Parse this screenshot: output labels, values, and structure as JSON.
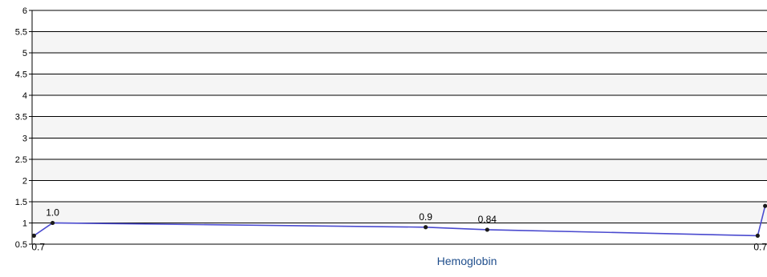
{
  "chart_data": {
    "type": "line",
    "title": "",
    "xlabel": "Hemoglobin",
    "ylabel": "",
    "ylim": [
      0.5,
      6
    ],
    "y_ticks": [
      0.5,
      1,
      1.5,
      2,
      2.5,
      3,
      3.5,
      4,
      4.5,
      5,
      5.5,
      6
    ],
    "y_tick_labels": [
      "0.5",
      "1",
      "1.5",
      "2",
      "2.5",
      "3",
      "3.5",
      "4",
      "4.5",
      "5",
      "5.5",
      "6"
    ],
    "grid": true,
    "series": [
      {
        "color": "#4a4acf",
        "points": [
          {
            "index": 0,
            "value": 0.7,
            "label": "0.7"
          },
          {
            "index": 1,
            "value": 1.0,
            "label": "1.0"
          },
          {
            "index": 21,
            "value": 0.9,
            "label": "0.9"
          },
          {
            "index": 24.3,
            "value": 0.84,
            "label": "0.84"
          },
          {
            "index": 38.8,
            "value": 0.7,
            "label": "0.7"
          },
          {
            "index": 39.2,
            "value": 1.4,
            "label": ""
          }
        ]
      }
    ],
    "x_index_range": [
      -0.1,
      39.3
    ]
  },
  "colors": {
    "line": "#4a4acf",
    "marker": "#1a1a1a",
    "band": "#f5f5f5",
    "gridline": "#000000",
    "axis_label": "#1f4e8c"
  }
}
